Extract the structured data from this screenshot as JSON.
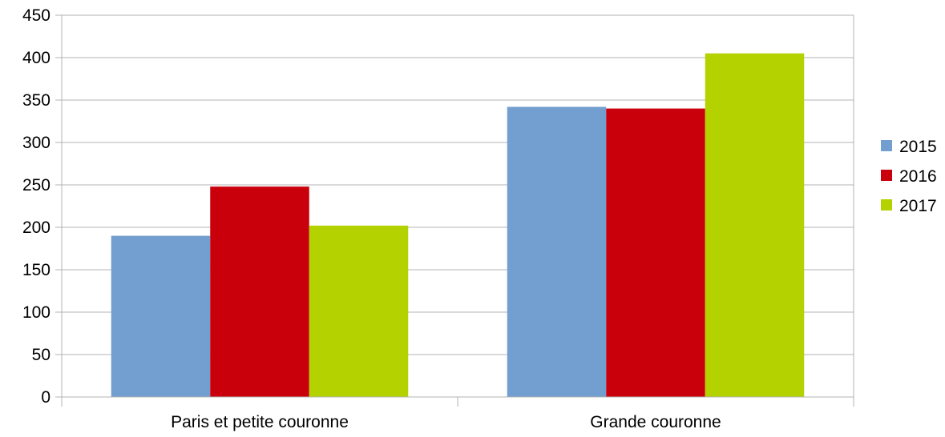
{
  "chart_data": {
    "type": "bar",
    "categories": [
      "Paris et petite couronne",
      "Grande couronne"
    ],
    "series": [
      {
        "name": "2015",
        "color": "#729fcf",
        "values": [
          190,
          342
        ]
      },
      {
        "name": "2016",
        "color": "#c9000b",
        "values": [
          248,
          340
        ]
      },
      {
        "name": "2017",
        "color": "#b4d100",
        "values": [
          202,
          405
        ]
      }
    ],
    "ylim": [
      0,
      450
    ],
    "yticks": [
      0,
      50,
      100,
      150,
      200,
      250,
      300,
      350,
      400,
      450
    ],
    "grid": true,
    "legend_position": "right",
    "title": "",
    "xlabel": "",
    "ylabel": ""
  }
}
